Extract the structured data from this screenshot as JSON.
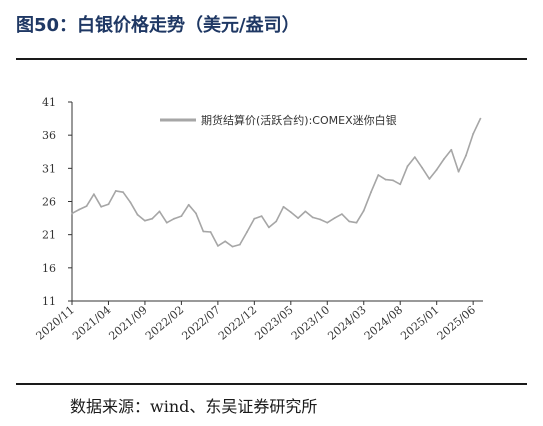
{
  "header": {
    "title": "图50：白银价格走势（美元/盎司）"
  },
  "footer": {
    "source": "数据来源：wind、东吴证券研究所"
  },
  "colors": {
    "title": "#1f3864",
    "series": "#a6a6a6",
    "axis": "#333333"
  },
  "chart_data": {
    "type": "line",
    "title": "",
    "xlabel": "",
    "ylabel": "",
    "ylim": [
      11,
      41
    ],
    "yticks": [
      "11",
      "16",
      "21",
      "26",
      "31",
      "36",
      "41"
    ],
    "xticks": [
      "2020/11",
      "2021/04",
      "2021/09",
      "2022/02",
      "2022/07",
      "2022/12",
      "2023/05",
      "2023/10",
      "2024/03",
      "2024/08",
      "2025/01",
      "2025/06"
    ],
    "grid": false,
    "legend": "top-right",
    "series": [
      {
        "name": "期货结算价(活跃合约):COMEX迷你白银",
        "x": [
          "2020/11",
          "2020/12",
          "2021/01",
          "2021/02",
          "2021/03",
          "2021/04",
          "2021/05",
          "2021/06",
          "2021/07",
          "2021/08",
          "2021/09",
          "2021/10",
          "2021/11",
          "2021/12",
          "2022/01",
          "2022/02",
          "2022/03",
          "2022/04",
          "2022/05",
          "2022/06",
          "2022/07",
          "2022/08",
          "2022/09",
          "2022/10",
          "2022/11",
          "2022/12",
          "2023/01",
          "2023/02",
          "2023/03",
          "2023/04",
          "2023/05",
          "2023/06",
          "2023/07",
          "2023/08",
          "2023/09",
          "2023/10",
          "2023/11",
          "2023/12",
          "2024/01",
          "2024/02",
          "2024/03",
          "2024/04",
          "2024/05",
          "2024/06",
          "2024/07",
          "2024/08",
          "2024/09",
          "2024/10",
          "2024/11",
          "2024/12",
          "2025/01",
          "2025/02",
          "2025/03",
          "2025/04",
          "2025/05",
          "2025/06",
          "2025/07"
        ],
        "values": [
          24.2,
          24.8,
          25.3,
          27.1,
          25.2,
          25.6,
          27.6,
          27.4,
          25.9,
          24.0,
          23.1,
          23.4,
          24.5,
          22.8,
          23.4,
          23.8,
          25.5,
          24.2,
          21.5,
          21.4,
          19.3,
          20.0,
          19.2,
          19.5,
          21.4,
          23.4,
          23.8,
          22.1,
          23.0,
          25.2,
          24.4,
          23.5,
          24.5,
          23.6,
          23.3,
          22.8,
          23.5,
          24.1,
          23.0,
          22.8,
          24.6,
          27.4,
          30.0,
          29.3,
          29.2,
          28.6,
          31.3,
          32.7,
          31.1,
          29.4,
          30.8,
          32.4,
          33.8,
          30.5,
          32.9,
          36.2,
          38.5
        ]
      }
    ]
  }
}
